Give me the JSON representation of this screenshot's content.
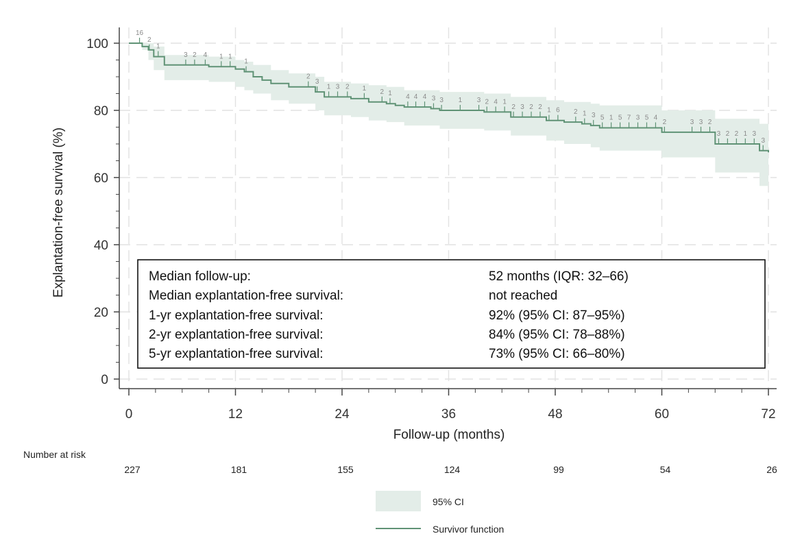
{
  "chart_data": {
    "type": "line",
    "subtype": "kaplan-meier",
    "xlabel": "Follow-up (months)",
    "ylabel": "Explantation-free survival (%)",
    "xlim": [
      0,
      72
    ],
    "ylim": [
      0,
      100
    ],
    "xticks": [
      0,
      12,
      24,
      36,
      48,
      60,
      72
    ],
    "yticks": [
      0,
      20,
      40,
      60,
      80,
      100
    ],
    "grid": true,
    "survival_steps": [
      {
        "t": 0,
        "s": 100
      },
      {
        "t": 1.5,
        "s": 99
      },
      {
        "t": 2.2,
        "s": 98
      },
      {
        "t": 2.8,
        "s": 96
      },
      {
        "t": 4.0,
        "s": 93.5
      },
      {
        "t": 7.0,
        "s": 93.5
      },
      {
        "t": 9.0,
        "s": 93
      },
      {
        "t": 12.0,
        "s": 92.3
      },
      {
        "t": 13.0,
        "s": 91.5
      },
      {
        "t": 14.0,
        "s": 90
      },
      {
        "t": 15.0,
        "s": 89
      },
      {
        "t": 16.0,
        "s": 88
      },
      {
        "t": 18.0,
        "s": 87
      },
      {
        "t": 21.0,
        "s": 85.5
      },
      {
        "t": 22.0,
        "s": 84
      },
      {
        "t": 24.0,
        "s": 84
      },
      {
        "t": 25.0,
        "s": 83.5
      },
      {
        "t": 27.0,
        "s": 82.5
      },
      {
        "t": 29.0,
        "s": 82
      },
      {
        "t": 30.0,
        "s": 81.5
      },
      {
        "t": 31.0,
        "s": 81
      },
      {
        "t": 34.0,
        "s": 80.5
      },
      {
        "t": 35.0,
        "s": 80
      },
      {
        "t": 40.0,
        "s": 79.5
      },
      {
        "t": 43.0,
        "s": 78
      },
      {
        "t": 47.0,
        "s": 77
      },
      {
        "t": 49.0,
        "s": 76.5
      },
      {
        "t": 51.0,
        "s": 76
      },
      {
        "t": 52.0,
        "s": 75.5
      },
      {
        "t": 53.0,
        "s": 74.8
      },
      {
        "t": 60.0,
        "s": 73.5
      },
      {
        "t": 66.0,
        "s": 70
      },
      {
        "t": 71.0,
        "s": 68
      },
      {
        "t": 72.0,
        "s": 67.5
      }
    ],
    "ci_steps": [
      {
        "t": 0,
        "lo": 100,
        "hi": 100
      },
      {
        "t": 1.5,
        "lo": 98,
        "hi": 100
      },
      {
        "t": 2.2,
        "lo": 95,
        "hi": 100
      },
      {
        "t": 2.8,
        "lo": 92,
        "hi": 99
      },
      {
        "t": 4.0,
        "lo": 89,
        "hi": 96.5
      },
      {
        "t": 9.0,
        "lo": 88.5,
        "hi": 96
      },
      {
        "t": 12.0,
        "lo": 87,
        "hi": 95
      },
      {
        "t": 13.0,
        "lo": 86,
        "hi": 94.5
      },
      {
        "t": 14.0,
        "lo": 85,
        "hi": 93.5
      },
      {
        "t": 16.0,
        "lo": 83,
        "hi": 92
      },
      {
        "t": 18.0,
        "lo": 82,
        "hi": 91
      },
      {
        "t": 21.0,
        "lo": 80,
        "hi": 90
      },
      {
        "t": 22.0,
        "lo": 78.5,
        "hi": 88.5
      },
      {
        "t": 25.0,
        "lo": 78,
        "hi": 88
      },
      {
        "t": 27.0,
        "lo": 77,
        "hi": 87.5
      },
      {
        "t": 29.0,
        "lo": 76.5,
        "hi": 87
      },
      {
        "t": 31.0,
        "lo": 75.5,
        "hi": 86
      },
      {
        "t": 35.0,
        "lo": 74.5,
        "hi": 85.5
      },
      {
        "t": 40.0,
        "lo": 74,
        "hi": 85
      },
      {
        "t": 43.0,
        "lo": 72.5,
        "hi": 84
      },
      {
        "t": 47.0,
        "lo": 71,
        "hi": 83
      },
      {
        "t": 49.0,
        "lo": 70,
        "hi": 82.5
      },
      {
        "t": 52.0,
        "lo": 69,
        "hi": 82
      },
      {
        "t": 53.0,
        "lo": 68,
        "hi": 81.5
      },
      {
        "t": 60.0,
        "lo": 66,
        "hi": 80
      },
      {
        "t": 66.0,
        "lo": 61.5,
        "hi": 77.5
      },
      {
        "t": 71.0,
        "lo": 57.5,
        "hi": 76
      },
      {
        "t": 72.0,
        "lo": 57.5,
        "hi": 76
      }
    ],
    "censor_marks": [
      {
        "t": 1.2,
        "label": "16"
      },
      {
        "t": 2.3,
        "label": "2"
      },
      {
        "t": 3.3,
        "label": "1"
      },
      {
        "t": 6.4,
        "label": "3"
      },
      {
        "t": 7.4,
        "label": "2"
      },
      {
        "t": 8.6,
        "label": "4"
      },
      {
        "t": 10.4,
        "label": "1"
      },
      {
        "t": 11.4,
        "label": "1"
      },
      {
        "t": 13.2,
        "label": "1"
      },
      {
        "t": 20.2,
        "label": "2"
      },
      {
        "t": 21.2,
        "label": "3"
      },
      {
        "t": 22.5,
        "label": "1"
      },
      {
        "t": 23.5,
        "label": "3"
      },
      {
        "t": 24.6,
        "label": "2"
      },
      {
        "t": 26.5,
        "label": "1"
      },
      {
        "t": 28.5,
        "label": "2"
      },
      {
        "t": 29.4,
        "label": "1"
      },
      {
        "t": 31.4,
        "label": "4"
      },
      {
        "t": 32.3,
        "label": "4"
      },
      {
        "t": 33.3,
        "label": "4"
      },
      {
        "t": 34.3,
        "label": "3"
      },
      {
        "t": 35.2,
        "label": "3"
      },
      {
        "t": 37.3,
        "label": "1"
      },
      {
        "t": 39.4,
        "label": "3"
      },
      {
        "t": 40.3,
        "label": "2"
      },
      {
        "t": 41.3,
        "label": "4"
      },
      {
        "t": 42.3,
        "label": "1"
      },
      {
        "t": 43.3,
        "label": "2"
      },
      {
        "t": 44.3,
        "label": "3"
      },
      {
        "t": 45.3,
        "label": "2"
      },
      {
        "t": 46.3,
        "label": "2"
      },
      {
        "t": 47.3,
        "label": "1"
      },
      {
        "t": 48.3,
        "label": "6"
      },
      {
        "t": 50.3,
        "label": "2"
      },
      {
        "t": 51.3,
        "label": "1"
      },
      {
        "t": 52.3,
        "label": "3"
      },
      {
        "t": 53.3,
        "label": "5"
      },
      {
        "t": 54.3,
        "label": "1"
      },
      {
        "t": 55.3,
        "label": "5"
      },
      {
        "t": 56.3,
        "label": "7"
      },
      {
        "t": 57.3,
        "label": "3"
      },
      {
        "t": 58.3,
        "label": "5"
      },
      {
        "t": 59.3,
        "label": "4"
      },
      {
        "t": 60.3,
        "label": "2"
      },
      {
        "t": 63.4,
        "label": "3"
      },
      {
        "t": 64.4,
        "label": "3"
      },
      {
        "t": 65.4,
        "label": "2"
      },
      {
        "t": 66.4,
        "label": "3"
      },
      {
        "t": 67.4,
        "label": "2"
      },
      {
        "t": 68.4,
        "label": "2"
      },
      {
        "t": 69.4,
        "label": "1"
      },
      {
        "t": 70.4,
        "label": "3"
      },
      {
        "t": 71.4,
        "label": "3"
      }
    ],
    "risk_table": {
      "title": "Number at risk",
      "times": [
        0,
        12,
        24,
        36,
        48,
        60,
        72
      ],
      "values": [
        "227",
        "181",
        "155",
        "124",
        "99",
        "54",
        "26"
      ]
    },
    "legend": [
      {
        "label": "95% CI",
        "kind": "band",
        "color": "#e3ede8"
      },
      {
        "label": "Survivor function",
        "kind": "line",
        "color": "#5f9275"
      }
    ],
    "colors": {
      "line": "#5f9275",
      "ci_band": "#e3ede8",
      "grid": "#e2e2e2",
      "axis": "#444444",
      "censor_label": "#8a8a8a"
    }
  },
  "summary_box": {
    "rows": [
      {
        "label": "Median follow-up:",
        "value": "52 months (IQR: 32–66)"
      },
      {
        "label": "Median explantation-free survival:",
        "value": "not reached"
      },
      {
        "label": "1-yr explantation-free survival:",
        "value": "92% (95% CI: 87–95%)"
      },
      {
        "label": "2-yr explantation-free survival:",
        "value": "84% (95% CI: 78–88%)"
      },
      {
        "label": "5-yr explantation-free survival:",
        "value": "73% (95% CI: 66–80%)"
      }
    ]
  }
}
